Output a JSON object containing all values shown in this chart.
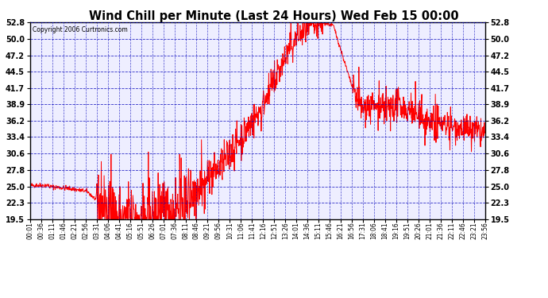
{
  "title": "Wind Chill per Minute (Last 24 Hours) Wed Feb 15 00:00",
  "copyright": "Copyright 2006 Curtronics.com",
  "yticks": [
    19.5,
    22.3,
    25.0,
    27.8,
    30.6,
    33.4,
    36.2,
    38.9,
    41.7,
    44.5,
    47.2,
    50.0,
    52.8
  ],
  "xtick_labels": [
    "00:01",
    "00:36",
    "01:11",
    "01:46",
    "02:21",
    "02:56",
    "03:31",
    "04:06",
    "04:41",
    "05:16",
    "05:51",
    "06:26",
    "07:01",
    "07:36",
    "08:11",
    "08:46",
    "09:21",
    "09:56",
    "10:31",
    "11:06",
    "11:41",
    "12:16",
    "12:51",
    "13:26",
    "14:01",
    "14:36",
    "15:11",
    "15:46",
    "16:21",
    "16:56",
    "17:31",
    "18:06",
    "18:41",
    "19:16",
    "19:51",
    "20:26",
    "21:01",
    "21:36",
    "22:11",
    "22:46",
    "23:21",
    "23:56"
  ],
  "ymin": 19.5,
  "ymax": 52.8,
  "line_color": "#FF0000",
  "plot_bg": "#EEEEFF",
  "grid_color": "#0000BB",
  "title_color": "#000000",
  "border_color": "#000000",
  "outer_bg": "#FFFFFF"
}
